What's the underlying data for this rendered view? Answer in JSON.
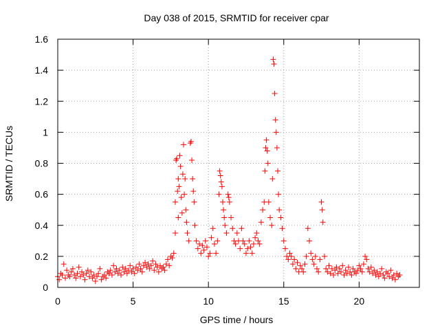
{
  "chart_data": {
    "type": "scatter",
    "title": "Day 038 of 2015, SRMTID for receiver cpar",
    "xlabel": "GPS time / hours",
    "ylabel": "SRMTID / TECUs",
    "xlim": [
      0,
      24
    ],
    "ylim": [
      0,
      1.6
    ],
    "xticks": [
      0,
      5,
      10,
      15,
      20
    ],
    "xtick_labels": [
      "0",
      "5",
      "10",
      "15",
      "20"
    ],
    "yticks": [
      0,
      0.2,
      0.4,
      0.6,
      0.8,
      1.0,
      1.2,
      1.4,
      1.6
    ],
    "ytick_labels": [
      "0",
      "0.2",
      "0.4",
      "0.6",
      "0.8",
      "1",
      "1.2",
      "1.4",
      "1.6"
    ],
    "grid": true,
    "marker": "+",
    "color": "#ff0000",
    "series": [
      {
        "name": "SRMTID",
        "points": [
          [
            0.0,
            0.07
          ],
          [
            0.1,
            0.05
          ],
          [
            0.2,
            0.09
          ],
          [
            0.3,
            0.08
          ],
          [
            0.4,
            0.15
          ],
          [
            0.5,
            0.06
          ],
          [
            0.6,
            0.11
          ],
          [
            0.7,
            0.08
          ],
          [
            0.8,
            0.07
          ],
          [
            0.9,
            0.1
          ],
          [
            1.0,
            0.12
          ],
          [
            1.1,
            0.08
          ],
          [
            1.2,
            0.06
          ],
          [
            1.3,
            0.09
          ],
          [
            1.4,
            0.13
          ],
          [
            1.5,
            0.07
          ],
          [
            1.6,
            0.1
          ],
          [
            1.7,
            0.08
          ],
          [
            1.8,
            0.05
          ],
          [
            1.9,
            0.09
          ],
          [
            2.0,
            0.11
          ],
          [
            2.1,
            0.07
          ],
          [
            2.2,
            0.1
          ],
          [
            2.3,
            0.06
          ],
          [
            2.4,
            0.08
          ],
          [
            2.5,
            0.04
          ],
          [
            2.6,
            0.07
          ],
          [
            2.7,
            0.09
          ],
          [
            2.8,
            0.12
          ],
          [
            2.9,
            0.05
          ],
          [
            3.0,
            0.07
          ],
          [
            3.1,
            0.08
          ],
          [
            3.2,
            0.06
          ],
          [
            3.3,
            0.1
          ],
          [
            3.4,
            0.09
          ],
          [
            3.5,
            0.11
          ],
          [
            3.6,
            0.08
          ],
          [
            3.7,
            0.14
          ],
          [
            3.8,
            0.1
          ],
          [
            3.9,
            0.12
          ],
          [
            4.0,
            0.09
          ],
          [
            4.1,
            0.11
          ],
          [
            4.2,
            0.08
          ],
          [
            4.3,
            0.13
          ],
          [
            4.4,
            0.1
          ],
          [
            4.5,
            0.12
          ],
          [
            4.6,
            0.09
          ],
          [
            4.7,
            0.11
          ],
          [
            4.8,
            0.14
          ],
          [
            4.9,
            0.1
          ],
          [
            5.0,
            0.12
          ],
          [
            5.1,
            0.09
          ],
          [
            5.2,
            0.13
          ],
          [
            5.3,
            0.11
          ],
          [
            5.4,
            0.15
          ],
          [
            5.5,
            0.12
          ],
          [
            5.6,
            0.1
          ],
          [
            5.7,
            0.14
          ],
          [
            5.8,
            0.16
          ],
          [
            5.9,
            0.13
          ],
          [
            6.0,
            0.15
          ],
          [
            6.1,
            0.12
          ],
          [
            6.2,
            0.14
          ],
          [
            6.3,
            0.17
          ],
          [
            6.4,
            0.11
          ],
          [
            6.5,
            0.15
          ],
          [
            6.6,
            0.13
          ],
          [
            6.7,
            0.1
          ],
          [
            6.8,
            0.14
          ],
          [
            6.9,
            0.12
          ],
          [
            7.0,
            0.13
          ],
          [
            7.1,
            0.11
          ],
          [
            7.2,
            0.15
          ],
          [
            7.3,
            0.18
          ],
          [
            7.4,
            0.14
          ],
          [
            7.5,
            0.2
          ],
          [
            7.6,
            0.19
          ],
          [
            7.7,
            0.22
          ],
          [
            7.8,
            0.35
          ],
          [
            7.8,
            0.55
          ],
          [
            7.85,
            0.82
          ],
          [
            7.9,
            0.83
          ],
          [
            7.95,
            0.62
          ],
          [
            8.0,
            0.7
          ],
          [
            8.0,
            0.45
          ],
          [
            8.05,
            0.65
          ],
          [
            8.1,
            0.85
          ],
          [
            8.15,
            0.78
          ],
          [
            8.2,
            0.58
          ],
          [
            8.25,
            0.48
          ],
          [
            8.3,
            0.73
          ],
          [
            8.35,
            0.92
          ],
          [
            8.4,
            0.6
          ],
          [
            8.45,
            0.7
          ],
          [
            8.5,
            0.5
          ],
          [
            8.55,
            0.42
          ],
          [
            8.6,
            0.35
          ],
          [
            8.7,
            0.3
          ],
          [
            8.8,
            0.93
          ],
          [
            8.85,
            0.94
          ],
          [
            8.9,
            0.82
          ],
          [
            8.95,
            0.7
          ],
          [
            9.0,
            0.62
          ],
          [
            9.05,
            0.55
          ],
          [
            9.1,
            0.4
          ],
          [
            9.2,
            0.3
          ],
          [
            9.3,
            0.25
          ],
          [
            9.4,
            0.28
          ],
          [
            9.5,
            0.22
          ],
          [
            9.6,
            0.27
          ],
          [
            9.7,
            0.24
          ],
          [
            9.8,
            0.3
          ],
          [
            9.9,
            0.26
          ],
          [
            10.0,
            0.2
          ],
          [
            10.1,
            0.22
          ],
          [
            10.2,
            0.32
          ],
          [
            10.3,
            0.38
          ],
          [
            10.4,
            0.28
          ],
          [
            10.5,
            0.22
          ],
          [
            10.6,
            0.3
          ],
          [
            10.7,
            0.6
          ],
          [
            10.75,
            0.75
          ],
          [
            10.8,
            0.72
          ],
          [
            10.85,
            0.68
          ],
          [
            10.9,
            0.65
          ],
          [
            10.95,
            0.55
          ],
          [
            11.0,
            0.5
          ],
          [
            11.05,
            0.45
          ],
          [
            11.1,
            0.4
          ],
          [
            11.2,
            0.35
          ],
          [
            11.3,
            0.6
          ],
          [
            11.35,
            0.58
          ],
          [
            11.4,
            0.55
          ],
          [
            11.5,
            0.45
          ],
          [
            11.6,
            0.38
          ],
          [
            11.7,
            0.3
          ],
          [
            11.8,
            0.28
          ],
          [
            11.9,
            0.35
          ],
          [
            12.0,
            0.3
          ],
          [
            12.1,
            0.25
          ],
          [
            12.2,
            0.38
          ],
          [
            12.3,
            0.3
          ],
          [
            12.4,
            0.28
          ],
          [
            12.5,
            0.22
          ],
          [
            12.6,
            0.25
          ],
          [
            12.7,
            0.3
          ],
          [
            12.8,
            0.26
          ],
          [
            12.9,
            0.22
          ],
          [
            13.0,
            0.28
          ],
          [
            13.1,
            0.32
          ],
          [
            13.2,
            0.35
          ],
          [
            13.3,
            0.3
          ],
          [
            13.4,
            0.28
          ],
          [
            13.5,
            0.42
          ],
          [
            13.6,
            0.5
          ],
          [
            13.7,
            0.55
          ],
          [
            13.75,
            0.75
          ],
          [
            13.8,
            0.9
          ],
          [
            13.85,
            0.95
          ],
          [
            13.9,
            0.88
          ],
          [
            13.95,
            0.8
          ],
          [
            14.0,
            0.55
          ],
          [
            14.1,
            0.45
          ],
          [
            14.2,
            0.4
          ],
          [
            14.25,
            0.7
          ],
          [
            14.3,
            1.47
          ],
          [
            14.35,
            1.44
          ],
          [
            14.4,
            1.25
          ],
          [
            14.45,
            1.08
          ],
          [
            14.5,
            1.0
          ],
          [
            14.55,
            0.9
          ],
          [
            14.6,
            0.75
          ],
          [
            14.65,
            0.6
          ],
          [
            14.7,
            0.5
          ],
          [
            14.8,
            0.45
          ],
          [
            14.9,
            0.38
          ],
          [
            15.0,
            0.3
          ],
          [
            15.1,
            0.25
          ],
          [
            15.2,
            0.2
          ],
          [
            15.3,
            0.18
          ],
          [
            15.4,
            0.22
          ],
          [
            15.5,
            0.2
          ],
          [
            15.6,
            0.15
          ],
          [
            15.7,
            0.18
          ],
          [
            15.8,
            0.12
          ],
          [
            15.9,
            0.16
          ],
          [
            16.0,
            0.1
          ],
          [
            16.1,
            0.14
          ],
          [
            16.2,
            0.12
          ],
          [
            16.3,
            0.1
          ],
          [
            16.4,
            0.15
          ],
          [
            16.5,
            0.2
          ],
          [
            16.6,
            0.38
          ],
          [
            16.7,
            0.3
          ],
          [
            16.8,
            0.22
          ],
          [
            16.9,
            0.18
          ],
          [
            17.0,
            0.15
          ],
          [
            17.1,
            0.2
          ],
          [
            17.2,
            0.12
          ],
          [
            17.3,
            0.1
          ],
          [
            17.4,
            0.18
          ],
          [
            17.5,
            0.55
          ],
          [
            17.55,
            0.5
          ],
          [
            17.6,
            0.42
          ],
          [
            17.7,
            0.2
          ],
          [
            17.8,
            0.12
          ],
          [
            17.9,
            0.1
          ],
          [
            18.0,
            0.14
          ],
          [
            18.1,
            0.09
          ],
          [
            18.2,
            0.12
          ],
          [
            18.3,
            0.08
          ],
          [
            18.4,
            0.11
          ],
          [
            18.5,
            0.13
          ],
          [
            18.6,
            0.09
          ],
          [
            18.7,
            0.12
          ],
          [
            18.8,
            0.1
          ],
          [
            18.9,
            0.14
          ],
          [
            19.0,
            0.08
          ],
          [
            19.1,
            0.11
          ],
          [
            19.2,
            0.09
          ],
          [
            19.3,
            0.13
          ],
          [
            19.4,
            0.1
          ],
          [
            19.5,
            0.08
          ],
          [
            19.6,
            0.12
          ],
          [
            19.7,
            0.1
          ],
          [
            19.8,
            0.09
          ],
          [
            19.9,
            0.11
          ],
          [
            20.0,
            0.14
          ],
          [
            20.1,
            0.12
          ],
          [
            20.2,
            0.1
          ],
          [
            20.3,
            0.15
          ],
          [
            20.4,
            0.2
          ],
          [
            20.5,
            0.18
          ],
          [
            20.6,
            0.12
          ],
          [
            20.7,
            0.1
          ],
          [
            20.8,
            0.13
          ],
          [
            20.9,
            0.09
          ],
          [
            21.0,
            0.11
          ],
          [
            21.1,
            0.08
          ],
          [
            21.2,
            0.1
          ],
          [
            21.3,
            0.07
          ],
          [
            21.4,
            0.09
          ],
          [
            21.5,
            0.12
          ],
          [
            21.6,
            0.08
          ],
          [
            21.7,
            0.06
          ],
          [
            21.8,
            0.1
          ],
          [
            21.9,
            0.09
          ],
          [
            22.0,
            0.07
          ],
          [
            22.1,
            0.11
          ],
          [
            22.2,
            0.06
          ],
          [
            22.3,
            0.08
          ],
          [
            22.4,
            0.05
          ],
          [
            22.5,
            0.09
          ],
          [
            22.6,
            0.07
          ],
          [
            22.7,
            0.08
          ]
        ]
      }
    ]
  }
}
